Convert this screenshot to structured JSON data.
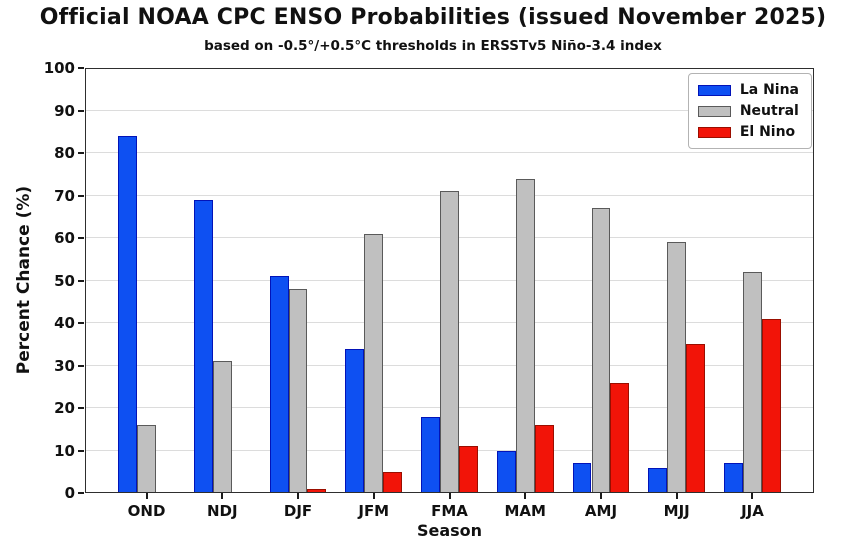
{
  "title": "Official NOAA CPC ENSO Probabilities (issued November 2025)",
  "subtitle": "based on -0.5°/+0.5°C thresholds in ERSSTv5 Niño-3.4 index",
  "chart_data": {
    "type": "bar",
    "title": "Official NOAA CPC ENSO Probabilities (issued November 2025)",
    "subtitle": "based on -0.5°/+0.5°C thresholds in ERSSTv5 Niño-3.4 index",
    "xlabel": "Season",
    "ylabel": "Percent Chance (%)",
    "categories": [
      "OND",
      "NDJ",
      "DJF",
      "JFM",
      "FMA",
      "MAM",
      "AMJ",
      "MJJ",
      "JJA"
    ],
    "series": [
      {
        "name": "La Nina",
        "color": "#0e50f2",
        "edge_color": "#0213b8",
        "values": [
          84,
          69,
          51,
          34,
          18,
          10,
          7,
          6,
          7
        ]
      },
      {
        "name": "Neutral",
        "color": "#c0c0c0",
        "edge_color": "#5a5a5a",
        "values": [
          16,
          31,
          48,
          61,
          71,
          74,
          67,
          59,
          52
        ]
      },
      {
        "name": "El Nino",
        "color": "#f21408",
        "edge_color": "#9a0e00",
        "values": [
          0,
          0,
          1,
          5,
          11,
          16,
          26,
          35,
          41
        ]
      }
    ],
    "ylim": [
      0,
      100
    ],
    "yticks": [
      0,
      10,
      20,
      30,
      40,
      50,
      60,
      70,
      80,
      90,
      100
    ],
    "grid": true,
    "gridline_color": "#dcdcdc",
    "legend_position": "upper right"
  }
}
